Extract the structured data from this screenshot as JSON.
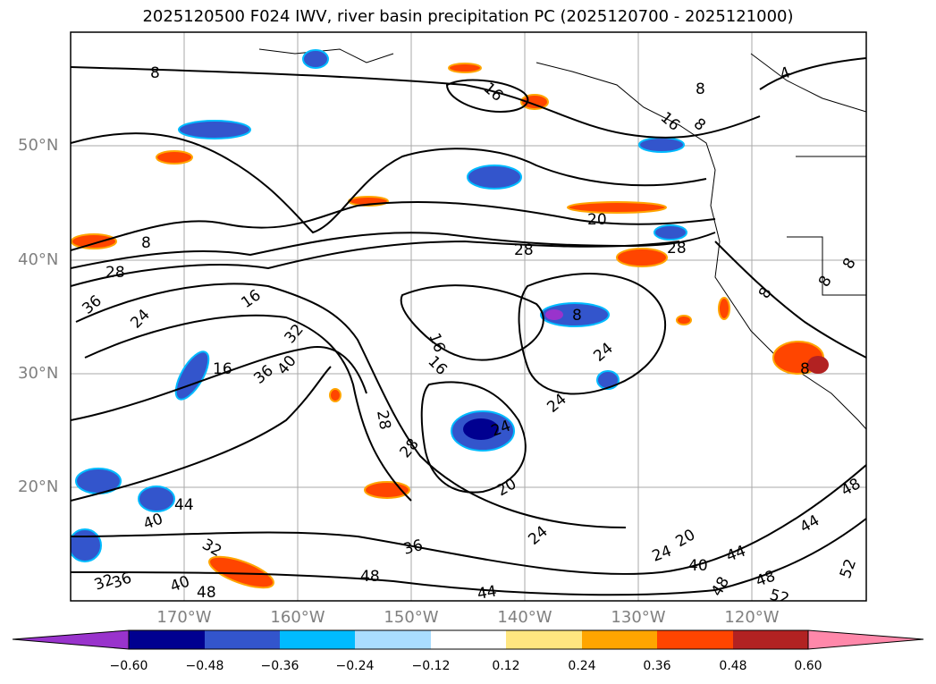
{
  "title": "2025120500 F024 IWV, river basin precipitation PC (2025120700 - 2025121000)",
  "lat_labels": [
    "50°N",
    "40°N",
    "30°N",
    "20°N"
  ],
  "lon_labels": [
    "170°W",
    "160°W",
    "150°W",
    "140°W",
    "130°W",
    "120°W"
  ],
  "colorbar": {
    "ticks": [
      "−0.60",
      "−0.48",
      "−0.36",
      "−0.24",
      "−0.12",
      "0.12",
      "0.24",
      "0.36",
      "0.48",
      "0.60"
    ],
    "colors": [
      "#9933cc",
      "#000090",
      "#3355cc",
      "#00bbff",
      "#aaddff",
      "#ffffff",
      "#ffe680",
      "#ffa500",
      "#ff4500",
      "#b22222",
      "#ff88aa"
    ]
  },
  "contour_labels": [
    {
      "text": "8"
    },
    {
      "text": "16"
    },
    {
      "text": "8"
    },
    {
      "text": "4"
    },
    {
      "text": "8"
    },
    {
      "text": "8"
    },
    {
      "text": "28"
    },
    {
      "text": "36"
    },
    {
      "text": "24"
    },
    {
      "text": "16"
    },
    {
      "text": "20"
    },
    {
      "text": "28"
    },
    {
      "text": "28"
    },
    {
      "text": "32"
    },
    {
      "text": "40"
    },
    {
      "text": "36"
    },
    {
      "text": "16"
    },
    {
      "text": "16"
    },
    {
      "text": "16"
    },
    {
      "text": "24"
    },
    {
      "text": "24"
    },
    {
      "text": "28"
    },
    {
      "text": "28"
    },
    {
      "text": "24"
    },
    {
      "text": "20"
    },
    {
      "text": "44"
    },
    {
      "text": "40"
    },
    {
      "text": "32"
    },
    {
      "text": "36"
    },
    {
      "text": "48"
    },
    {
      "text": "24"
    },
    {
      "text": "20"
    },
    {
      "text": "24"
    },
    {
      "text": "40"
    },
    {
      "text": "44"
    },
    {
      "text": "48"
    },
    {
      "text": "44"
    },
    {
      "text": "48"
    },
    {
      "text": "52"
    },
    {
      "text": "52"
    },
    {
      "text": "48"
    },
    {
      "text": "32"
    },
    {
      "text": "36"
    },
    {
      "text": "40"
    },
    {
      "text": "48"
    },
    {
      "text": "44"
    },
    {
      "text": "8"
    },
    {
      "text": "8"
    },
    {
      "text": "8"
    },
    {
      "text": "8"
    },
    {
      "text": "16"
    },
    {
      "text": "8"
    }
  ]
}
